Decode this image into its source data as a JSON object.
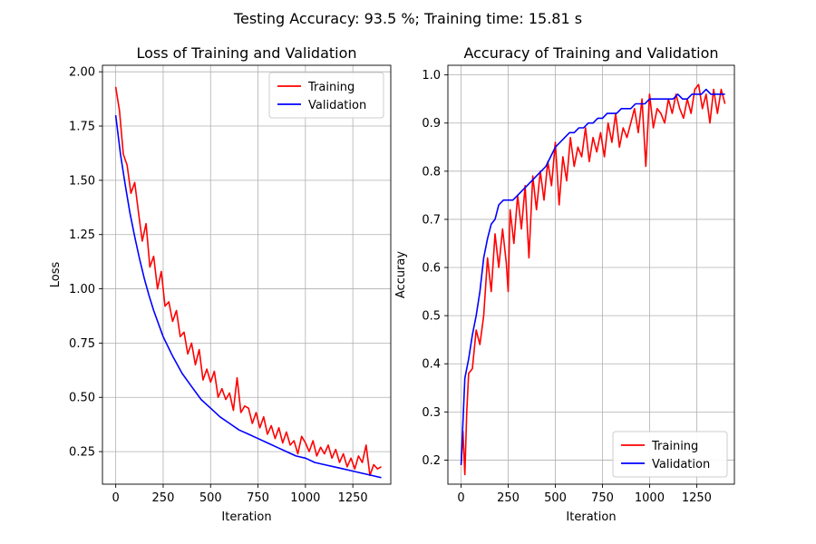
{
  "figure": {
    "suptitle": "Testing Accuracy: 93.5 %; Training time: 15.81 s"
  },
  "chart_data": [
    {
      "type": "line",
      "title": "Loss of Training and Validation",
      "xlabel": "Iteration",
      "ylabel": "Loss",
      "xlim": [
        -70,
        1450
      ],
      "ylim": [
        0.1,
        2.03
      ],
      "xticks": [
        0,
        250,
        500,
        750,
        1000,
        1250
      ],
      "yticks": [
        0.25,
        0.5,
        0.75,
        1.0,
        1.25,
        1.5,
        1.75,
        2.0
      ],
      "ytick_labels": [
        "0.25",
        "0.50",
        "0.75",
        "1.00",
        "1.25",
        "1.50",
        "1.75",
        "2.00"
      ],
      "grid": true,
      "legend": "upper right",
      "series": [
        {
          "name": "Training",
          "color": "#ff0000",
          "x": [
            0,
            20,
            40,
            60,
            80,
            100,
            120,
            140,
            160,
            180,
            200,
            220,
            240,
            260,
            280,
            300,
            320,
            340,
            360,
            380,
            400,
            420,
            440,
            460,
            480,
            500,
            520,
            540,
            560,
            580,
            600,
            620,
            640,
            660,
            680,
            700,
            720,
            740,
            760,
            780,
            800,
            820,
            840,
            860,
            880,
            900,
            920,
            940,
            960,
            980,
            1000,
            1020,
            1040,
            1060,
            1080,
            1100,
            1120,
            1140,
            1160,
            1180,
            1200,
            1220,
            1240,
            1260,
            1280,
            1300,
            1320,
            1340,
            1360,
            1380,
            1400
          ],
          "y": [
            1.93,
            1.82,
            1.62,
            1.57,
            1.44,
            1.49,
            1.35,
            1.22,
            1.3,
            1.1,
            1.15,
            1.0,
            1.08,
            0.92,
            0.94,
            0.85,
            0.9,
            0.78,
            0.8,
            0.7,
            0.75,
            0.65,
            0.72,
            0.58,
            0.63,
            0.57,
            0.62,
            0.5,
            0.54,
            0.49,
            0.52,
            0.44,
            0.59,
            0.43,
            0.46,
            0.45,
            0.38,
            0.43,
            0.36,
            0.41,
            0.33,
            0.37,
            0.31,
            0.36,
            0.29,
            0.34,
            0.28,
            0.3,
            0.24,
            0.32,
            0.29,
            0.25,
            0.3,
            0.23,
            0.27,
            0.24,
            0.28,
            0.22,
            0.26,
            0.2,
            0.24,
            0.18,
            0.22,
            0.17,
            0.23,
            0.2,
            0.28,
            0.14,
            0.19,
            0.17,
            0.18
          ]
        },
        {
          "name": "Validation",
          "color": "#0000ff",
          "x": [
            0,
            25,
            50,
            75,
            100,
            125,
            150,
            175,
            200,
            250,
            300,
            350,
            400,
            450,
            500,
            550,
            600,
            650,
            700,
            750,
            800,
            850,
            900,
            950,
            1000,
            1050,
            1100,
            1150,
            1200,
            1250,
            1300,
            1350,
            1400
          ],
          "y": [
            1.8,
            1.62,
            1.48,
            1.35,
            1.24,
            1.14,
            1.05,
            0.97,
            0.9,
            0.78,
            0.69,
            0.61,
            0.55,
            0.49,
            0.45,
            0.41,
            0.38,
            0.35,
            0.33,
            0.31,
            0.29,
            0.27,
            0.25,
            0.23,
            0.22,
            0.2,
            0.19,
            0.18,
            0.17,
            0.16,
            0.15,
            0.14,
            0.13
          ]
        }
      ]
    },
    {
      "type": "line",
      "title": "Accuracy of Training and Validation",
      "xlabel": "Iteration",
      "ylabel": "Accuray",
      "xlim": [
        -70,
        1450
      ],
      "ylim": [
        0.15,
        1.02
      ],
      "xticks": [
        0,
        250,
        500,
        750,
        1000,
        1250
      ],
      "yticks": [
        0.2,
        0.3,
        0.4,
        0.5,
        0.6,
        0.7,
        0.8,
        0.9,
        1.0
      ],
      "ytick_labels": [
        "0.2",
        "0.3",
        "0.4",
        "0.5",
        "0.6",
        "0.7",
        "0.8",
        "0.9",
        "1.0"
      ],
      "grid": true,
      "legend": "lower right",
      "series": [
        {
          "name": "Training",
          "color": "#ff0000",
          "x": [
            0,
            10,
            20,
            30,
            40,
            60,
            80,
            100,
            120,
            140,
            160,
            180,
            200,
            220,
            240,
            250,
            260,
            280,
            300,
            320,
            340,
            360,
            380,
            400,
            420,
            440,
            460,
            480,
            500,
            520,
            540,
            560,
            580,
            600,
            620,
            640,
            660,
            680,
            700,
            720,
            740,
            760,
            780,
            800,
            820,
            840,
            860,
            880,
            900,
            920,
            940,
            960,
            980,
            1000,
            1020,
            1040,
            1060,
            1080,
            1100,
            1120,
            1140,
            1160,
            1180,
            1200,
            1220,
            1240,
            1260,
            1280,
            1300,
            1320,
            1340,
            1360,
            1380,
            1400
          ],
          "y": [
            0.19,
            0.26,
            0.17,
            0.3,
            0.38,
            0.39,
            0.47,
            0.44,
            0.5,
            0.62,
            0.55,
            0.67,
            0.6,
            0.68,
            0.61,
            0.55,
            0.72,
            0.65,
            0.75,
            0.68,
            0.77,
            0.62,
            0.79,
            0.72,
            0.8,
            0.74,
            0.82,
            0.77,
            0.86,
            0.73,
            0.83,
            0.78,
            0.87,
            0.81,
            0.85,
            0.83,
            0.89,
            0.82,
            0.87,
            0.84,
            0.88,
            0.83,
            0.9,
            0.86,
            0.92,
            0.85,
            0.89,
            0.87,
            0.9,
            0.93,
            0.88,
            0.95,
            0.81,
            0.96,
            0.89,
            0.93,
            0.92,
            0.9,
            0.95,
            0.92,
            0.96,
            0.93,
            0.91,
            0.95,
            0.92,
            0.97,
            0.98,
            0.93,
            0.96,
            0.9,
            0.97,
            0.92,
            0.97,
            0.94
          ]
        },
        {
          "name": "Validation",
          "color": "#0000ff",
          "x": [
            0,
            20,
            40,
            60,
            80,
            100,
            120,
            140,
            160,
            180,
            200,
            225,
            250,
            275,
            300,
            325,
            350,
            375,
            400,
            425,
            450,
            475,
            500,
            525,
            550,
            575,
            600,
            625,
            650,
            675,
            700,
            725,
            750,
            775,
            800,
            825,
            850,
            875,
            900,
            925,
            950,
            975,
            1000,
            1025,
            1050,
            1075,
            1100,
            1125,
            1150,
            1175,
            1200,
            1225,
            1250,
            1275,
            1300,
            1325,
            1350,
            1375,
            1400
          ],
          "y": [
            0.19,
            0.37,
            0.41,
            0.46,
            0.5,
            0.55,
            0.62,
            0.66,
            0.69,
            0.7,
            0.73,
            0.74,
            0.74,
            0.74,
            0.75,
            0.76,
            0.77,
            0.78,
            0.79,
            0.8,
            0.81,
            0.83,
            0.85,
            0.86,
            0.87,
            0.88,
            0.88,
            0.89,
            0.89,
            0.9,
            0.9,
            0.91,
            0.91,
            0.92,
            0.92,
            0.92,
            0.93,
            0.93,
            0.93,
            0.94,
            0.94,
            0.94,
            0.95,
            0.95,
            0.95,
            0.95,
            0.95,
            0.95,
            0.96,
            0.95,
            0.95,
            0.96,
            0.96,
            0.96,
            0.97,
            0.96,
            0.96,
            0.96,
            0.96
          ]
        }
      ]
    }
  ]
}
